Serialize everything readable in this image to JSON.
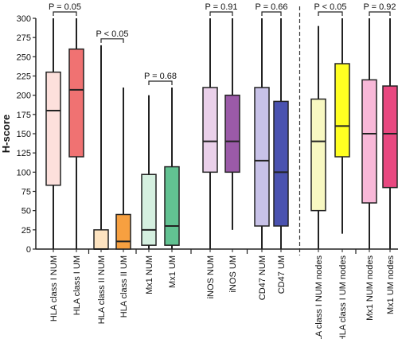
{
  "chart_data": {
    "type": "box",
    "y_label": "H-score",
    "ylim": [
      0,
      300
    ],
    "yticks": [
      0,
      25,
      50,
      75,
      100,
      125,
      150,
      175,
      200,
      225,
      250,
      275,
      300
    ],
    "series": [
      {
        "name": "HLA class I NUM",
        "color": "#fde0dc",
        "min": 0,
        "q1": 83,
        "median": 180,
        "q3": 230,
        "max": 300
      },
      {
        "name": "HLA class I UM",
        "color": "#f07272",
        "min": 0,
        "q1": 120,
        "median": 207,
        "q3": 260,
        "max": 300
      },
      {
        "name": "HLA class II NUM",
        "color": "#fde3c0",
        "min": 0,
        "q1": 0,
        "median": 0,
        "q3": 25,
        "max": 265
      },
      {
        "name": "HLA class II UM",
        "color": "#f7a040",
        "min": 0,
        "q1": 0,
        "median": 10,
        "q3": 45,
        "max": 210
      },
      {
        "name": "Mx1 NUM",
        "color": "#d5f0e0",
        "min": 0,
        "q1": 5,
        "median": 25,
        "q3": 97,
        "max": 200
      },
      {
        "name": "Mx1 UM",
        "color": "#62c292",
        "min": 0,
        "q1": 5,
        "median": 30,
        "q3": 107,
        "max": 210
      },
      {
        "name": "iNOS NUM",
        "color": "#ead0ea",
        "min": 0,
        "q1": 100,
        "median": 140,
        "q3": 210,
        "max": 300
      },
      {
        "name": "iNOS UM",
        "color": "#9b5aa8",
        "min": 25,
        "q1": 100,
        "median": 140,
        "q3": 200,
        "max": 300
      },
      {
        "name": "CD47 NUM",
        "color": "#c8c2e8",
        "min": 0,
        "q1": 30,
        "median": 115,
        "q3": 210,
        "max": 300
      },
      {
        "name": "CD47 UM",
        "color": "#4a52b0",
        "min": 0,
        "q1": 30,
        "median": 100,
        "q3": 192,
        "max": 300
      },
      {
        "name": "HLA class I NUM nodes",
        "color": "#f8f8c2",
        "min": 0,
        "q1": 50,
        "median": 140,
        "q3": 195,
        "max": 290
      },
      {
        "name": "HLA class I UM nodes",
        "color": "#ffff22",
        "min": 20,
        "q1": 120,
        "median": 160,
        "q3": 241,
        "max": 300
      },
      {
        "name": "Mx1 NUM nodes",
        "color": "#f8b8d8",
        "min": 0,
        "q1": 60,
        "median": 150,
        "q3": 220,
        "max": 300
      },
      {
        "name": "Mx1 UM nodes",
        "color": "#e84880",
        "min": 0,
        "q1": 80,
        "median": 150,
        "q3": 212,
        "max": 300
      }
    ],
    "annotations": [
      "P = 0.05",
      "P < 0.05",
      "P = 0.68",
      "P = 0.91",
      "P = 0.66",
      "P < 0.05",
      "P = 0.92"
    ]
  }
}
